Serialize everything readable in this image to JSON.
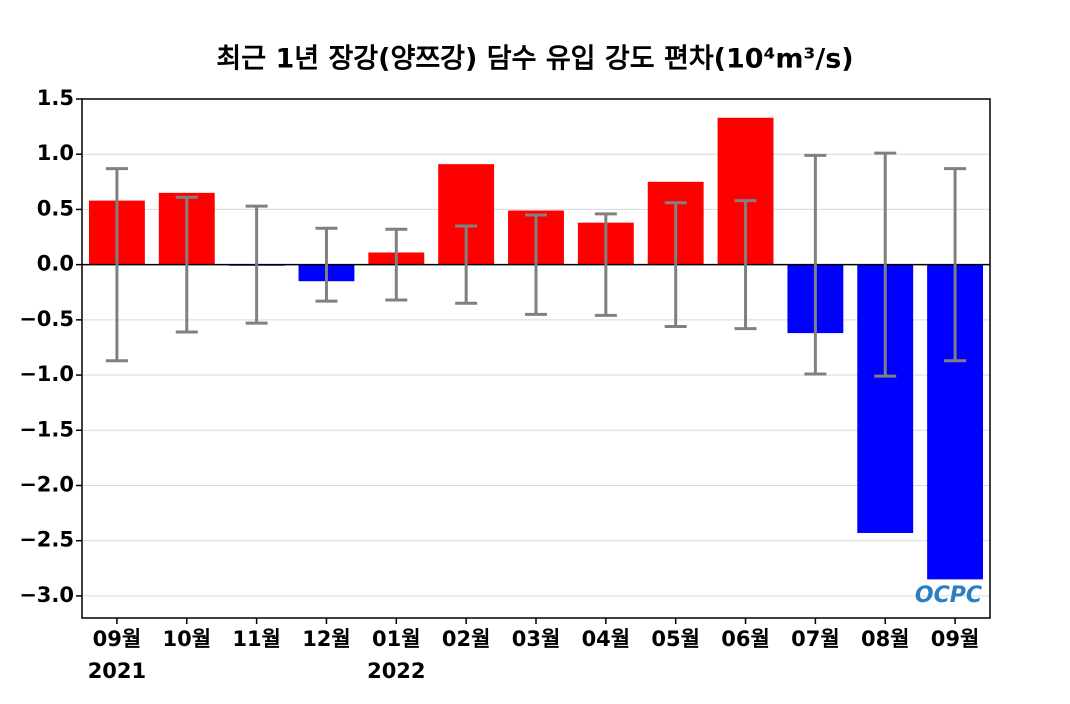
{
  "chart_data": {
    "type": "bar",
    "title": "최근 1년 장강(양쯔강) 담수 유입 강도 편차(10⁴m³/s)",
    "categories": [
      "09월",
      "10월",
      "11월",
      "12월",
      "01월",
      "02월",
      "03월",
      "04월",
      "05월",
      "06월",
      "07월",
      "08월",
      "09월"
    ],
    "year_labels": [
      "2021",
      null,
      null,
      null,
      "2022",
      null,
      null,
      null,
      null,
      null,
      null,
      null,
      null
    ],
    "values": [
      0.58,
      0.65,
      -0.01,
      -0.15,
      0.11,
      0.91,
      0.49,
      0.38,
      0.75,
      1.33,
      -0.62,
      -2.43,
      -2.85
    ],
    "std": [
      0.87,
      0.61,
      0.53,
      0.33,
      0.32,
      0.35,
      0.45,
      0.46,
      0.56,
      0.58,
      0.99,
      1.01,
      0.87
    ],
    "positive_color": "#ff0000",
    "negative_color": "#0000ff",
    "error_color": "#808080",
    "ylim": [
      -3.2,
      1.5
    ],
    "yticks": [
      {
        "value": 1.5,
        "label": "1.5"
      },
      {
        "value": 1,
        "label": "1.0"
      },
      {
        "value": 0.5,
        "label": "0.5"
      },
      {
        "value": 0,
        "label": "0.0"
      },
      {
        "value": -0.5,
        "label": "−0.5"
      },
      {
        "value": -1,
        "label": "−1.0"
      },
      {
        "value": -1.5,
        "label": "−1.5"
      },
      {
        "value": -2,
        "label": "−2.0"
      },
      {
        "value": -2.5,
        "label": "−2.5"
      },
      {
        "value": -3,
        "label": "−3.0"
      }
    ],
    "grid": true,
    "watermark": "OCPC"
  }
}
